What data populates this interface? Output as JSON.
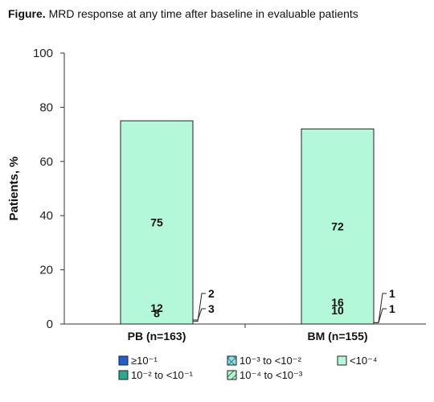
{
  "figure": {
    "title_prefix": "Figure.",
    "title_text": "MRD response at any time after baseline in evaluable patients"
  },
  "chart_data": {
    "type": "bar",
    "stacked": true,
    "ylabel": "Patients, %",
    "ylim": [
      0,
      100
    ],
    "yticks": [
      "0",
      "20",
      "40",
      "60",
      "80",
      "100"
    ],
    "categories": [
      "PB (n=163)",
      "BM (n=155)"
    ],
    "series": [
      {
        "name": "≥10⁻¹",
        "values": [
          3,
          1
        ],
        "labels": [
          "3",
          "1"
        ],
        "color": "#1f5fd1",
        "pattern": "solid"
      },
      {
        "name": "10⁻² to <10⁻¹",
        "values": [
          2,
          1
        ],
        "labels": [
          "2",
          "1"
        ],
        "color": "#2aa98f",
        "pattern": "solid"
      },
      {
        "name": "10⁻³ to <10⁻²",
        "values": [
          8,
          10
        ],
        "labels": [
          "8",
          "10"
        ],
        "color": "#8fe0e4",
        "pattern": "crosshatch"
      },
      {
        "name": "10⁻⁴ to <10⁻³",
        "values": [
          12,
          16
        ],
        "labels": [
          "12",
          "16"
        ],
        "color": "#b6f2cf",
        "pattern": "diagonal"
      },
      {
        "name": "<10⁻⁴",
        "values": [
          75,
          72
        ],
        "labels": [
          "75",
          "72"
        ],
        "color": "#b3f8d8",
        "pattern": "solid"
      }
    ],
    "grid": false,
    "legend_position": "bottom"
  }
}
